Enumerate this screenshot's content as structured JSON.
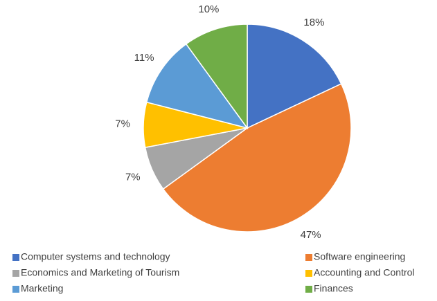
{
  "chart_data": {
    "type": "pie",
    "categories": [
      "Computer systems and technology",
      "Software engineering",
      "Economics and Marketing of Tourism",
      "Accounting and Control",
      "Marketing",
      "Finances"
    ],
    "values": [
      18,
      47,
      7,
      7,
      11,
      10
    ],
    "value_labels": [
      "18%",
      "47%",
      "7%",
      "7%",
      "11%",
      "10%"
    ],
    "colors": [
      "#4472c4",
      "#ed7d31",
      "#a5a5a5",
      "#ffc000",
      "#5b9bd5",
      "#70ad47"
    ],
    "legend": "bottom"
  }
}
